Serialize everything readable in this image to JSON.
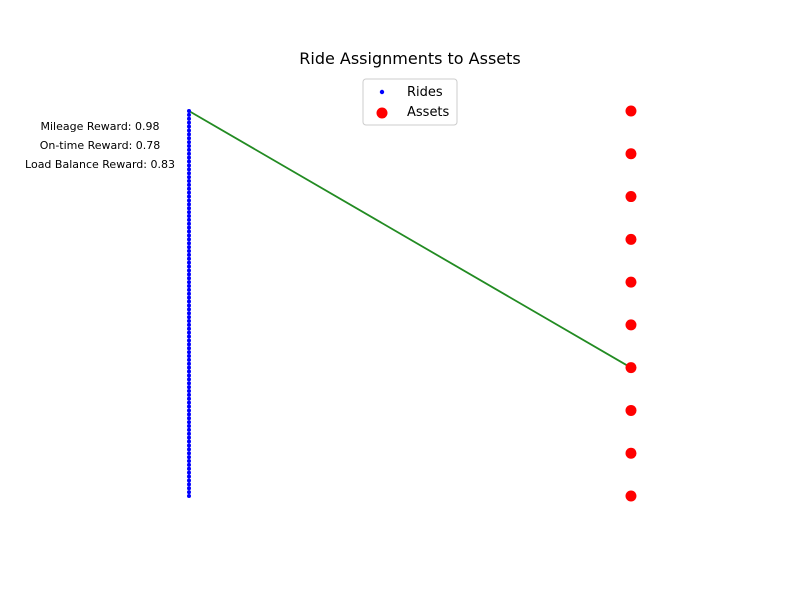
{
  "chart_data": {
    "type": "scatter",
    "title": "Ride Assignments to Assets",
    "xlabel": "",
    "ylabel": "",
    "grid": false,
    "axes_visible": false,
    "legend_position": "top-center",
    "legend": [
      {
        "label": "Rides",
        "color": "#0000ff",
        "marker": "small-dot"
      },
      {
        "label": "Assets",
        "color": "#ff0000",
        "marker": "large-dot"
      }
    ],
    "annotations": [
      "Mileage Reward: 0.98",
      "On-time Reward: 0.78",
      "Load Balance Reward: 0.83"
    ],
    "rides": {
      "name": "Rides",
      "color": "#0000ff",
      "x": 0,
      "y_max": 100,
      "y_min": 1
    },
    "assets": {
      "name": "Assets",
      "color": "#ff0000",
      "x": 1,
      "y_max": 10,
      "y_min": 1
    },
    "assignments": [
      {
        "ride": 100,
        "asset": 4,
        "color": "#228b22"
      }
    ]
  }
}
